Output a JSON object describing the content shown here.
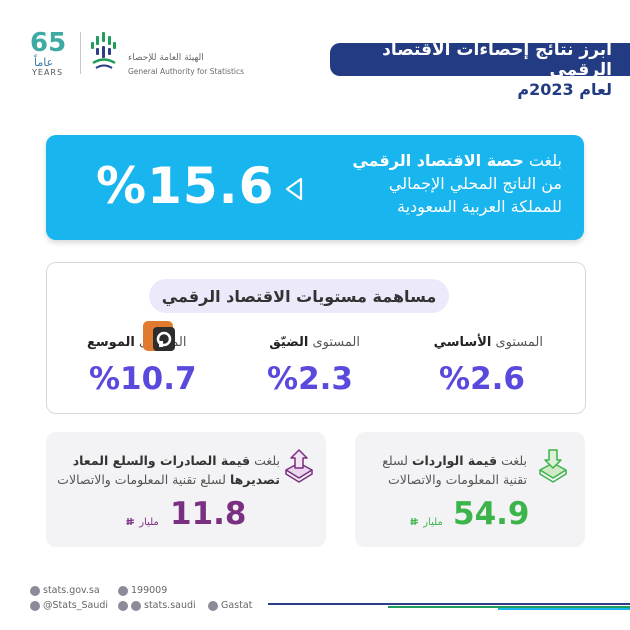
{
  "header": {
    "title": "أبرز نتائج إحصاءات الاقتصاد الرقمي",
    "subtitle": "لعام 2023م",
    "logo_ar": "الهيئة العامة للإحصاء",
    "logo_en": "General Authority for Statistics",
    "anniversary_number": "65",
    "anniversary_ar": "عاماً",
    "anniversary_en": "YEARS"
  },
  "share": {
    "line1_prefix": "بلغت ",
    "line1_bold": "حصة الاقتصاد الرقمي",
    "line2": "من الناتج المحلي الإجمالي",
    "line3": "للمملكة العربية السعودية",
    "value": "%15.6"
  },
  "levels": {
    "title": "مساهمة مستويات الاقتصاد الرقمي",
    "items": [
      {
        "label_prefix": "المستوى ",
        "label_bold": "الأساسي",
        "value": "%2.6"
      },
      {
        "label_prefix": "المستوى ",
        "label_bold": "الضيّق",
        "value": "%2.3"
      },
      {
        "label_prefix": "المستوى ",
        "label_bold": "الموسع",
        "value": "%10.7"
      }
    ]
  },
  "imports": {
    "line1_prefix": "بلغت ",
    "line1_bold": "قيمة الواردات",
    "line1_suffix": " لسلع",
    "line2": "تقنية المعلومات والاتصالات",
    "value": "54.9",
    "unit": "مليار",
    "color": "#3cb44b"
  },
  "exports": {
    "line1_prefix": "بلغت ",
    "line1_bold": "قيمة الصادرات والسلع المعاد",
    "line2_bold": "تصديرها",
    "line2_suffix": " لسلع تقنية المعلومات والاتصالات",
    "value": "11.8",
    "unit": "مليار",
    "color": "#7a2f80"
  },
  "footer": {
    "website": "stats.gov.sa",
    "phone": "199009",
    "twitter": "@Stats_Saudi",
    "social": "stats.saudi",
    "linkedin": "Gastat"
  }
}
